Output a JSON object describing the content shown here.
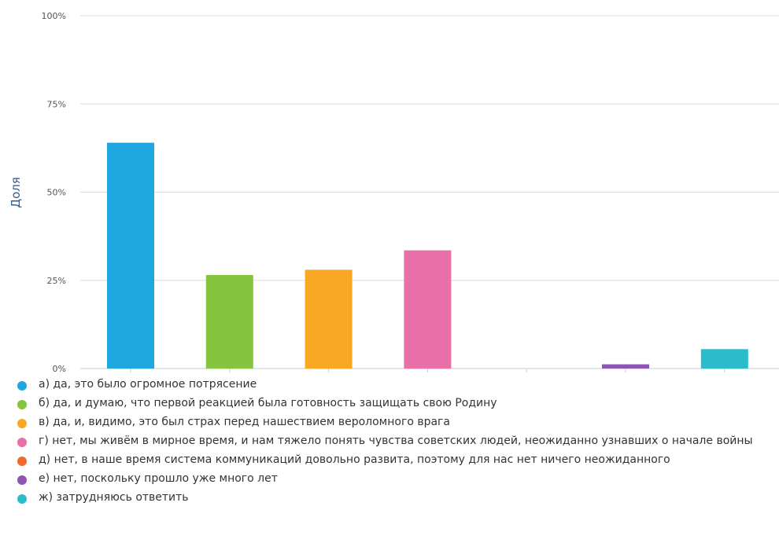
{
  "chart_data": {
    "type": "bar",
    "ylabel": "Доля",
    "xlabel": "",
    "ylim": [
      0,
      100
    ],
    "yticks": [
      0,
      25,
      50,
      75,
      100
    ],
    "ytick_labels": [
      "0%",
      "25%",
      "50%",
      "75%",
      "100%"
    ],
    "categories": [
      "а) да, это было огромное потрясение",
      "б) да, и думаю, что первой реакцией была готовность защищать свою Родину",
      "в) да, и, видимо, это был страх перед нашествием вероломного врага",
      "г) нет, мы живём в мирное время, и нам тяжело понять чувства советских людей, неожиданно узнавших о начале войны",
      "д) нет, в наше время система коммуникаций довольно развита, поэтому для нас нет ничего неожиданного",
      "е) нет, поскольку прошло уже много лет",
      "ж) затрудняюсь ответить"
    ],
    "values": [
      64,
      26.5,
      28,
      33.5,
      0,
      1.2,
      5.5
    ],
    "colors": [
      "#1fa8e0",
      "#86c440",
      "#f9a825",
      "#e86fa8",
      "#ef6a2c",
      "#8e56b4",
      "#2bbccb"
    ],
    "grid": true,
    "legend_position": "bottom"
  }
}
